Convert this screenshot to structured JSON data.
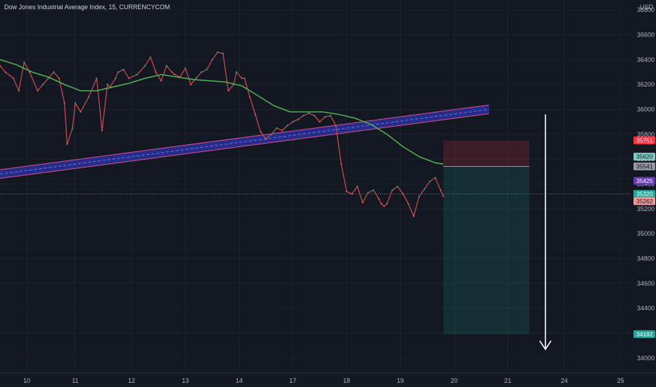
{
  "header": {
    "title": "Dow Jones Industrial Average Index, 15, CURRENCYCOM"
  },
  "axis": {
    "currency_label": "USD",
    "countdown": "03:46"
  },
  "chart_data": {
    "type": "line",
    "title": "Dow Jones Industrial Average Index, 15, CURRENCYCOM",
    "ylabel": "USD",
    "ylim": [
      33880,
      36880
    ],
    "y_ticks": [
      34000,
      34200,
      34400,
      34600,
      34800,
      35000,
      35200,
      35400,
      35600,
      35800,
      36000,
      36200,
      36400,
      36600,
      36800
    ],
    "x_ticks": [
      "10",
      "11",
      "12",
      "13",
      "14",
      "17",
      "18",
      "19",
      "20",
      "21",
      "24",
      "25"
    ],
    "x_tick_pos": [
      0.7,
      1.6,
      2.65,
      3.65,
      4.65,
      5.65,
      6.65,
      7.65,
      8.65,
      9.65,
      10.7,
      11.75
    ],
    "x_range": [
      0.2,
      11.95
    ],
    "grid": true,
    "series": [
      {
        "kind": "price",
        "color": "#c44a4a",
        "x": [
          0.2,
          0.3,
          0.45,
          0.55,
          0.65,
          0.75,
          0.9,
          1.0,
          1.1,
          1.2,
          1.3,
          1.4,
          1.45,
          1.55,
          1.6,
          1.7,
          1.85,
          2.0,
          2.1,
          2.2,
          2.25,
          2.35,
          2.4,
          2.5,
          2.6,
          2.75,
          2.9,
          3.0,
          3.1,
          3.2,
          3.3,
          3.4,
          3.45,
          3.55,
          3.65,
          3.75,
          3.85,
          3.95,
          4.05,
          4.15,
          4.25,
          4.35,
          4.45,
          4.55,
          4.6,
          4.7,
          4.75,
          4.85,
          4.95,
          5.05,
          5.15,
          5.25,
          5.35,
          5.45,
          5.55,
          5.65,
          5.75,
          5.85,
          5.95,
          6.05,
          6.15,
          6.25,
          6.35,
          6.45,
          6.55,
          6.65,
          6.75,
          6.85,
          6.95,
          7.05,
          7.15,
          7.25,
          7.3,
          7.35,
          7.4,
          7.5,
          7.6,
          7.7,
          7.8,
          7.9,
          8.0,
          8.1,
          8.2,
          8.3,
          8.4,
          8.45
        ],
        "values": [
          36350,
          36300,
          36250,
          36150,
          36380,
          36300,
          36150,
          36200,
          36250,
          36300,
          36250,
          36050,
          35720,
          35850,
          36050,
          35980,
          36100,
          36250,
          35830,
          36200,
          36180,
          36250,
          36300,
          36320,
          36250,
          36280,
          36350,
          36420,
          36300,
          36230,
          36350,
          36300,
          36280,
          36260,
          36330,
          36200,
          36250,
          36300,
          36320,
          36400,
          36460,
          36450,
          36150,
          36200,
          36300,
          36250,
          36250,
          36100,
          35960,
          35820,
          35760,
          35800,
          35850,
          35830,
          35870,
          35900,
          35920,
          35950,
          35970,
          35950,
          35900,
          35940,
          35950,
          35870,
          35560,
          35340,
          35320,
          35380,
          35250,
          35330,
          35350,
          35280,
          35240,
          35220,
          35240,
          35350,
          35380,
          35320,
          35240,
          35140,
          35300,
          35360,
          35420,
          35450,
          35350,
          35300
        ]
      },
      {
        "name": "",
        "kind": "moving-average",
        "color": "#4caf50",
        "x": [
          0.2,
          0.5,
          0.8,
          1.1,
          1.4,
          1.7,
          2.0,
          2.3,
          2.6,
          2.9,
          3.2,
          3.5,
          3.8,
          4.1,
          4.4,
          4.7,
          5.0,
          5.3,
          5.6,
          5.9,
          6.2,
          6.5,
          6.8,
          7.1,
          7.4,
          7.7,
          8.0,
          8.3,
          8.45
        ],
        "values": [
          36400,
          36360,
          36300,
          36260,
          36200,
          36150,
          36150,
          36180,
          36210,
          36250,
          36280,
          36260,
          36240,
          36230,
          36220,
          36190,
          36110,
          36030,
          35980,
          35980,
          35980,
          35960,
          35930,
          35880,
          35800,
          35700,
          35620,
          35570,
          35560
        ]
      }
    ],
    "channel": {
      "x": [
        0.2,
        9.3
      ],
      "center": [
        35480,
        36000
      ],
      "half_width": 35,
      "fill": "#2b2f9c",
      "edge_color": "#e04f8f"
    },
    "position": {
      "x": [
        8.45,
        10.05
      ],
      "entry": 35541,
      "stop": 35751,
      "target": 34192
    },
    "arrow": {
      "x": 10.35,
      "from": 35960,
      "to": 34070,
      "color": "#ffffff"
    },
    "price_tags": [
      {
        "value": 35751,
        "label": "35751",
        "bg": "#f23645",
        "fg": "#ffffff"
      },
      {
        "value": 35620,
        "label": "35620",
        "bg": "#80cbc4",
        "fg": "#131722"
      },
      {
        "value": 35541,
        "label": "35541",
        "bg": "#9598a1",
        "fg": "#131722"
      },
      {
        "value": 35425,
        "label": "35425",
        "bg": "#673ab7",
        "fg": "#ffffff"
      },
      {
        "value": 35320,
        "label": "35320",
        "bg": "#26a69a",
        "fg": "#ffffff"
      },
      {
        "value": 35262,
        "label": "35262",
        "bg": "#ef9a9a",
        "fg": "#131722"
      },
      {
        "value": 34192,
        "label": "34192",
        "bg": "#26a69a",
        "fg": "#ffffff"
      }
    ],
    "last_price": 35320,
    "colors": {
      "background": "#131722",
      "grid": "#1e222d",
      "text": "#b2b5be",
      "last_price_line": "#26a69a"
    }
  }
}
